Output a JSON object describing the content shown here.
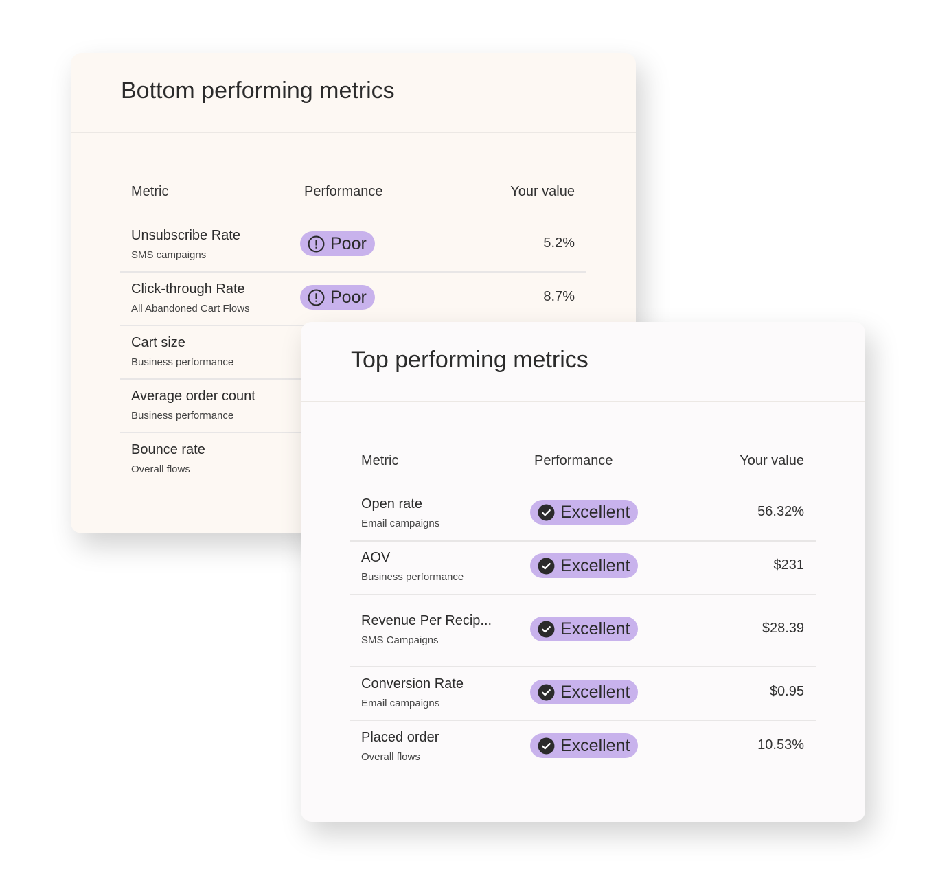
{
  "bottom_card": {
    "title": "Bottom performing metrics",
    "headers": [
      "Metric",
      "Performance",
      "Your value"
    ],
    "rows": [
      {
        "metric": "Unsubscribe Rate",
        "subtitle": "SMS campaigns",
        "performance": "Poor",
        "value": "5.2%"
      },
      {
        "metric": "Click-through Rate",
        "subtitle": "All Abandoned Cart Flows",
        "performance": "Poor",
        "value": "8.7%"
      },
      {
        "metric": "Cart size",
        "subtitle": "Business performance"
      },
      {
        "metric": "Average order count",
        "subtitle": "Business performance"
      },
      {
        "metric": "Bounce rate",
        "subtitle": "Overall flows"
      }
    ]
  },
  "top_card": {
    "title": "Top performing metrics",
    "headers": [
      "Metric",
      "Performance",
      "Your value"
    ],
    "rows": [
      {
        "metric": "Open rate",
        "subtitle": "Email campaigns",
        "performance": "Excellent",
        "value": "56.32%"
      },
      {
        "metric": "AOV",
        "subtitle": "Business performance",
        "performance": "Excellent",
        "value": "$231"
      },
      {
        "metric": "Revenue Per Recip...",
        "subtitle": "SMS Campaigns",
        "performance": "Excellent",
        "value": "$28.39"
      },
      {
        "metric": "Conversion Rate",
        "subtitle": "Email campaigns",
        "performance": "Excellent",
        "value": "$0.95"
      },
      {
        "metric": "Placed order",
        "subtitle": "Overall flows",
        "performance": "Excellent",
        "value": "10.53%"
      }
    ]
  }
}
